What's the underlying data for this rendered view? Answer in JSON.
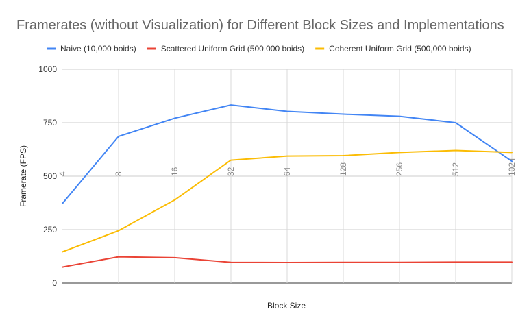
{
  "chart_data": {
    "type": "line",
    "title": "Framerates (without Visualization) for Different Block Sizes and Implementations",
    "xlabel": "Block Size",
    "ylabel": "Framerate (FPS)",
    "categories": [
      "4",
      "8",
      "16",
      "32",
      "64",
      "128",
      "256",
      "512",
      "1024"
    ],
    "ylim": [
      0,
      1000
    ],
    "yticks": [
      "0",
      "250",
      "500",
      "750",
      "1000"
    ],
    "grid": true,
    "legend_position": "top",
    "series": [
      {
        "name": "Naive (10,000 boids)",
        "color": "#4285f4",
        "values": [
          372,
          686,
          771,
          833,
          803,
          790,
          780,
          750,
          570
        ]
      },
      {
        "name": "Scattered Uniform Grid (500,000 boids)",
        "color": "#ea4335",
        "values": [
          75,
          123,
          119,
          97,
          96,
          97,
          97,
          98,
          98
        ]
      },
      {
        "name": "Coherent Uniform Grid (500,000 boids)",
        "color": "#fbbc04",
        "values": [
          146,
          245,
          389,
          575,
          594,
          596,
          611,
          620,
          611
        ]
      }
    ]
  }
}
